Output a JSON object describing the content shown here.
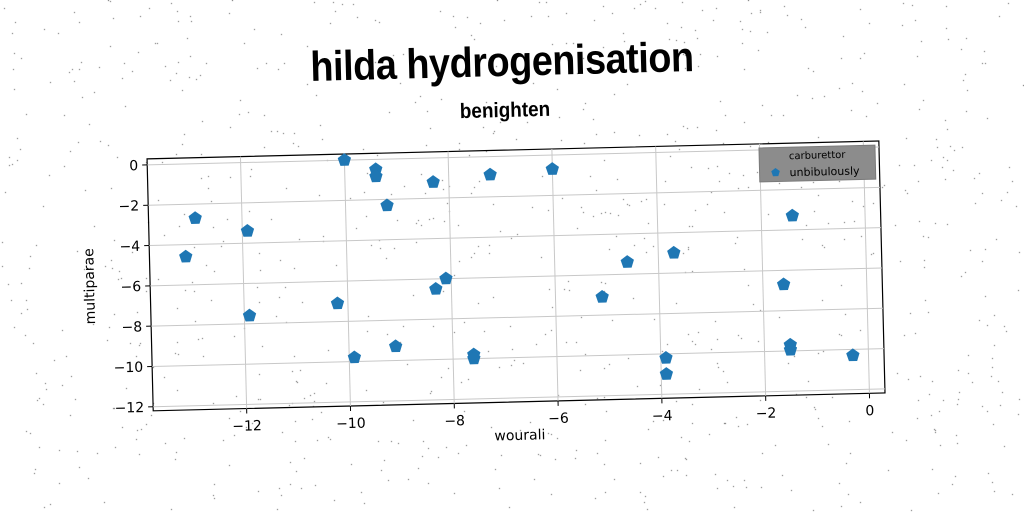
{
  "chart_data": {
    "type": "scatter",
    "title": "hilda hydrogenisation",
    "subtitle": "benighten",
    "xlabel": "wourali",
    "ylabel": "multiparae",
    "xlim": [
      -13.8,
      0.3
    ],
    "ylim": [
      -12.2,
      0.3
    ],
    "xticks": [
      -12,
      -10,
      -8,
      -6,
      -4,
      -2,
      0
    ],
    "yticks": [
      0,
      -2,
      -4,
      -6,
      -8,
      -10,
      -12
    ],
    "xtick_labels": [
      "−12",
      "−10",
      "−8",
      "−6",
      "−4",
      "−2",
      "0"
    ],
    "ytick_labels": [
      "0",
      "−2",
      "−4",
      "−6",
      "−8",
      "−10",
      "−12"
    ],
    "grid": true,
    "legend": {
      "placement": "top-right",
      "title": "carburettor"
    },
    "series": [
      {
        "name": "unbibulously",
        "color": "#1f77b4",
        "marker": "pentagon",
        "points": [
          {
            "x": -10.0,
            "y": 0.0
          },
          {
            "x": -9.4,
            "y": -0.5
          },
          {
            "x": -9.4,
            "y": -0.85
          },
          {
            "x": -8.3,
            "y": -1.2
          },
          {
            "x": -7.2,
            "y": -0.9
          },
          {
            "x": -6.0,
            "y": -0.7
          },
          {
            "x": -9.2,
            "y": -2.3
          },
          {
            "x": -12.9,
            "y": -2.7
          },
          {
            "x": -11.9,
            "y": -3.4
          },
          {
            "x": -13.1,
            "y": -4.6
          },
          {
            "x": -11.9,
            "y": -7.6
          },
          {
            "x": -10.2,
            "y": -7.1
          },
          {
            "x": -8.3,
            "y": -6.5
          },
          {
            "x": -8.1,
            "y": -6.0
          },
          {
            "x": -4.6,
            "y": -5.4
          },
          {
            "x": -3.7,
            "y": -5.0
          },
          {
            "x": -5.1,
            "y": -7.1
          },
          {
            "x": -9.9,
            "y": -9.8
          },
          {
            "x": -9.1,
            "y": -9.3
          },
          {
            "x": -7.6,
            "y": -9.8
          },
          {
            "x": -7.6,
            "y": -10.0
          },
          {
            "x": -3.9,
            "y": -10.2
          },
          {
            "x": -3.9,
            "y": -11.0
          },
          {
            "x": -1.6,
            "y": -6.7
          },
          {
            "x": -1.5,
            "y": -9.7
          },
          {
            "x": -1.5,
            "y": -9.95
          },
          {
            "x": -0.3,
            "y": -10.3
          },
          {
            "x": -1.4,
            "y": -1.1
          },
          {
            "x": -1.4,
            "y": -3.3
          }
        ]
      }
    ]
  }
}
